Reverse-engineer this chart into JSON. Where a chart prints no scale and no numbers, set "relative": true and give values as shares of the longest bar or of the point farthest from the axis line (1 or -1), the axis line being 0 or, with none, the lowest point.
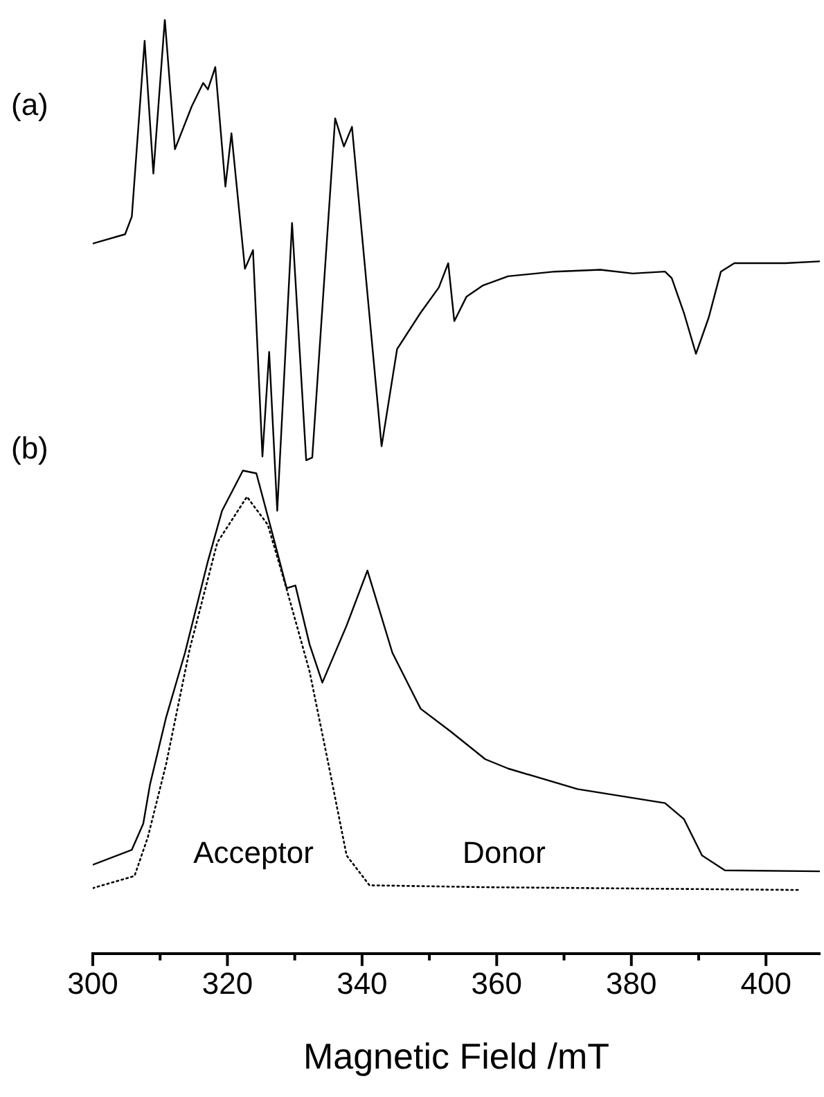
{
  "chart_data": {
    "type": "line",
    "xlabel": "Magnetic Field /mT",
    "relative": true,
    "marker": "none",
    "legend": false,
    "grid": false,
    "xlim": [
      300,
      408
    ],
    "xticks": [
      300,
      {
        "value": 310,
        "label": null
      },
      320,
      {
        "value": 330,
        "label": null
      },
      340,
      {
        "value": 350,
        "label": null
      },
      360,
      {
        "value": 370,
        "label": null
      },
      380,
      {
        "value": 390,
        "label": null
      },
      400
    ],
    "series": [
      {
        "color": "#000000",
        "line_style": "solid",
        "x": [
          300,
          304.8,
          305.8,
          307.7,
          309.0,
          310.7,
          312.2,
          314.7,
          316.4,
          317.1,
          318.2,
          319.7,
          320.6,
          322.6,
          323.8,
          325.2,
          326.2,
          327.4,
          329.6,
          331.7,
          332.6,
          336.0,
          337.3,
          338.5,
          342.9,
          345.2,
          348.7,
          351.4,
          352.8,
          353.7,
          355.5,
          357.9,
          361.7,
          368.6,
          375.4,
          380.2,
          385.0,
          386.0,
          387.8,
          389.6,
          391.5,
          393.3,
          395.3,
          402.9,
          408
        ],
        "values": [
          0.76,
          0.77,
          0.789,
          0.977,
          0.835,
          1,
          0.861,
          0.907,
          0.932,
          0.925,
          0.949,
          0.821,
          0.878,
          0.733,
          0.753,
          0.532,
          0.644,
          0.474,
          0.782,
          0.528,
          0.531,
          0.894,
          0.864,
          0.885,
          0.543,
          0.647,
          0.686,
          0.713,
          0.739,
          0.677,
          0.703,
          0.715,
          0.725,
          0.73,
          0.732,
          0.728,
          0.73,
          0.723,
          0.686,
          0.642,
          0.681,
          0.73,
          0.739,
          0.739,
          0.741
        ]
      },
      {
        "color": "#000000",
        "line_style": "solid",
        "x": [
          300,
          305.8,
          307.5,
          308.5,
          310.9,
          313.7,
          317.1,
          319.2,
          322.3,
          324.3,
          326.7,
          328.8,
          330.1,
          332.2,
          334.1,
          337.7,
          340.8,
          344.5,
          348.7,
          353.1,
          358.3,
          361.7,
          372.0,
          385.0,
          387.8,
          390.5,
          393.9,
          408
        ],
        "values": [
          0.095,
          0.111,
          0.139,
          0.181,
          0.253,
          0.322,
          0.42,
          0.474,
          0.517,
          0.514,
          0.449,
          0.391,
          0.394,
          0.331,
          0.29,
          0.351,
          0.41,
          0.322,
          0.262,
          0.238,
          0.208,
          0.198,
          0.176,
          0.161,
          0.144,
          0.105,
          0.089,
          0.088
        ]
      },
      {
        "color": "#000000",
        "line_style": "dotted",
        "x": [
          300,
          306.2,
          308.2,
          310.9,
          314.4,
          318.5,
          322.9,
          326.0,
          328.8,
          332.2,
          335.0,
          337.7,
          341.1,
          358.3,
          404.9
        ],
        "values": [
          0.07,
          0.083,
          0.125,
          0.203,
          0.326,
          0.44,
          0.489,
          0.459,
          0.39,
          0.302,
          0.203,
          0.105,
          0.073,
          0.071,
          0.068
        ]
      }
    ],
    "annotations": [
      "(a)",
      "(b)",
      "Acceptor",
      "Donor"
    ]
  }
}
